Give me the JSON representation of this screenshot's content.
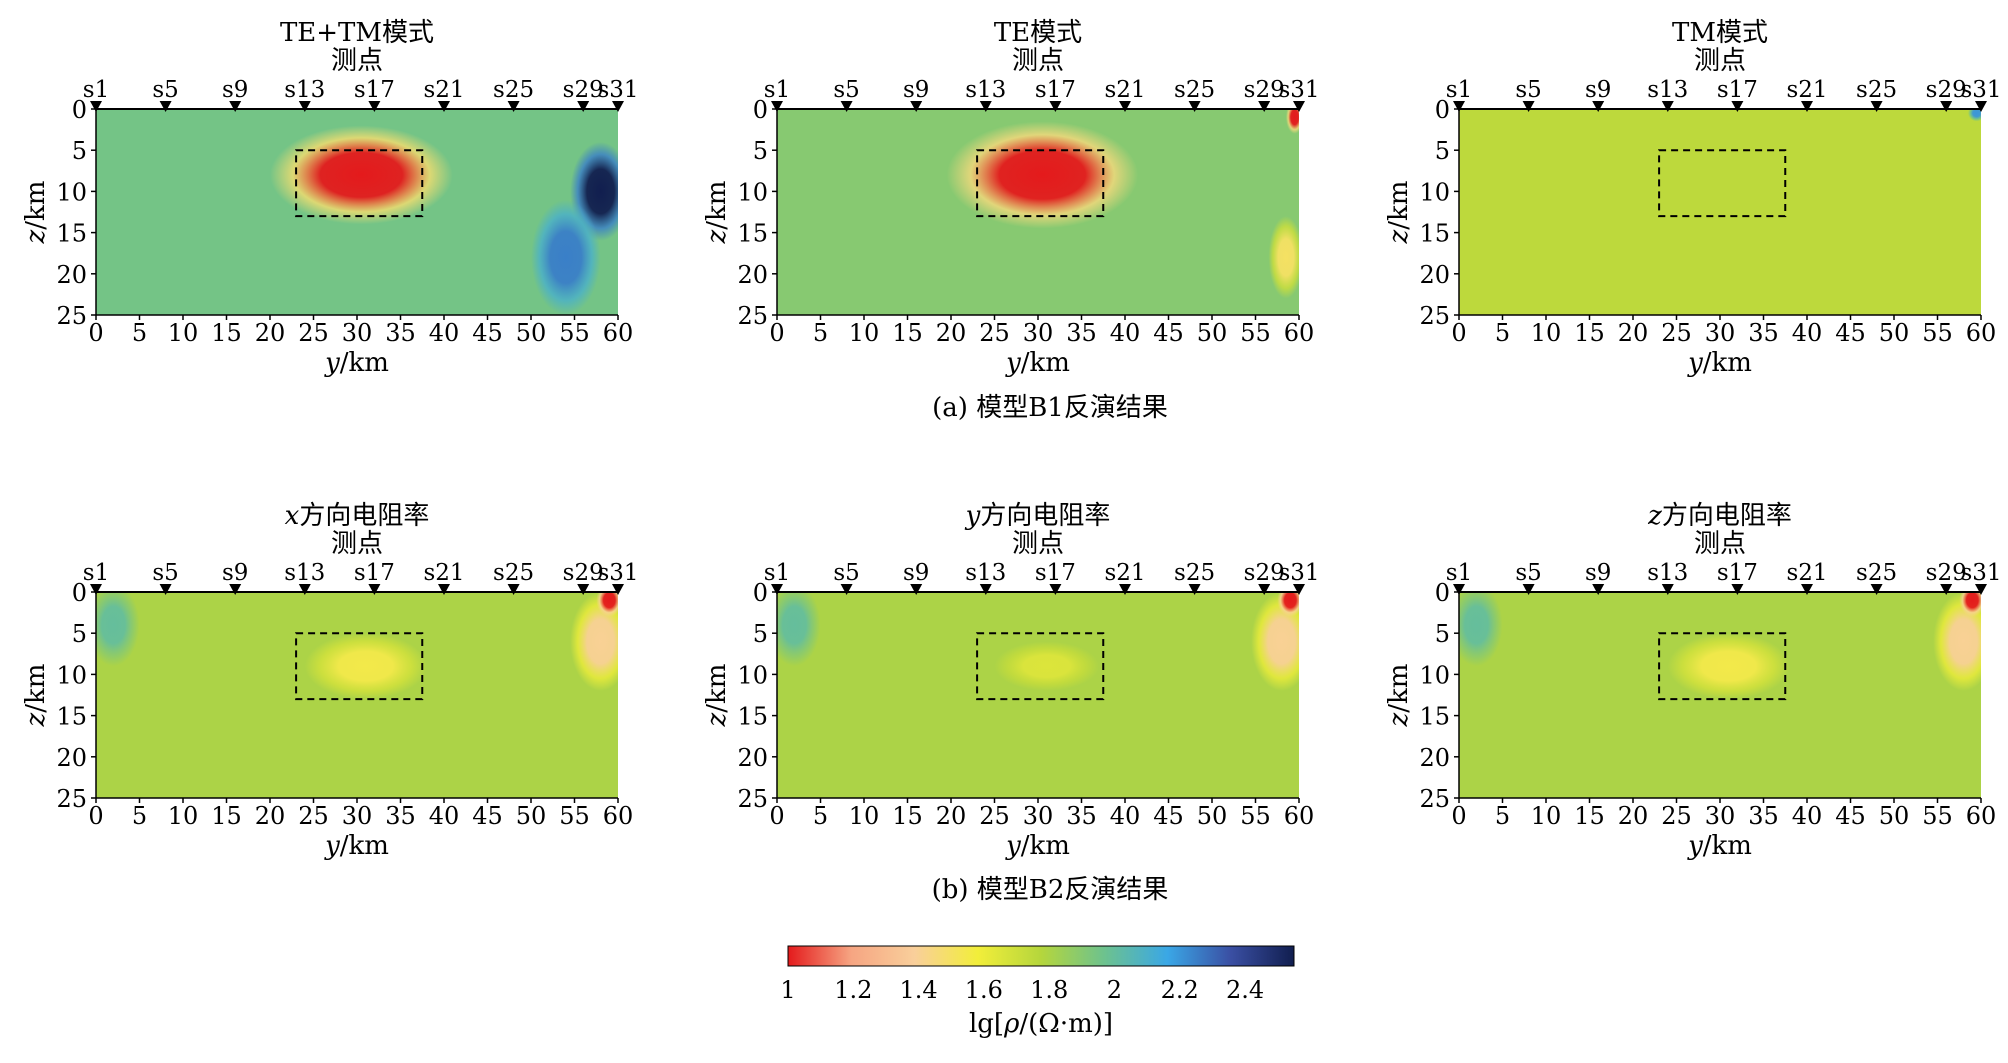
{
  "figure": {
    "caption_a": "(a) 模型B1反演结果",
    "caption_b": "(b) 模型B2反演结果"
  },
  "axis_text": {
    "station_axis_label": "测点",
    "x_axis_var": "y",
    "x_axis_unit": "/km",
    "y_axis_var": "z",
    "y_axis_unit": "/km"
  },
  "stations": [
    "s1",
    "s5",
    "s9",
    "s13",
    "s17",
    "s21",
    "s25",
    "s29",
    "s31"
  ],
  "station_positions_km": [
    0,
    8,
    16,
    24,
    32,
    40,
    48,
    56,
    60
  ],
  "x_ticks": [
    0,
    5,
    10,
    15,
    20,
    25,
    30,
    35,
    40,
    45,
    50,
    55,
    60
  ],
  "y_ticks": [
    0,
    5,
    10,
    15,
    20,
    25
  ],
  "colorbar": {
    "label_prefix": "lg[",
    "label_var": "ρ",
    "label_suffix": "/(Ω·m)]",
    "ticks": [
      "1",
      "1.2",
      "1.4",
      "1.6",
      "1.8",
      "2",
      "2.2",
      "2.4"
    ],
    "range": [
      1,
      2.55
    ],
    "colors": [
      "#e41a1c",
      "#f6a582",
      "#f9cf9b",
      "#f2ee3a",
      "#b5d63c",
      "#6dc28e",
      "#3aa7e6",
      "#3a4fa3",
      "#111e4f"
    ]
  },
  "chart_data": [
    {
      "type": "heatmap",
      "panel": "a",
      "title": "TE+TM模式",
      "xlabel": "y/km",
      "ylabel": "z/km",
      "x_range_km": [
        0,
        60
      ],
      "y_range_km": [
        0,
        25
      ],
      "y_inverted": true,
      "background_value": 1.95,
      "anomalies": [
        {
          "center_km": [
            30.5,
            8
          ],
          "radius_km": [
            10.5,
            6
          ],
          "value": 1.0
        },
        {
          "center_km": [
            58,
            10
          ],
          "radius_km": [
            3.5,
            6
          ],
          "value": 2.55
        },
        {
          "center_km": [
            54,
            18
          ],
          "radius_km": [
            4,
            7
          ],
          "value": 2.25
        }
      ],
      "target_box_km": {
        "y": [
          23,
          37.5
        ],
        "z": [
          5,
          13
        ]
      }
    },
    {
      "type": "heatmap",
      "panel": "a",
      "title": "TE模式",
      "xlabel": "y/km",
      "ylabel": "z/km",
      "x_range_km": [
        0,
        60
      ],
      "y_range_km": [
        0,
        25
      ],
      "y_inverted": true,
      "background_value": 1.9,
      "anomalies": [
        {
          "center_km": [
            30.5,
            8
          ],
          "radius_km": [
            11,
            6.5
          ],
          "value": 1.0
        },
        {
          "center_km": [
            59.5,
            1
          ],
          "radius_km": [
            1,
            2
          ],
          "value": 1.0
        },
        {
          "center_km": [
            58.5,
            18
          ],
          "radius_km": [
            2,
            5
          ],
          "value": 1.5
        }
      ],
      "target_box_km": {
        "y": [
          23,
          37.5
        ],
        "z": [
          5,
          13
        ]
      }
    },
    {
      "type": "heatmap",
      "panel": "a",
      "title": "TM模式",
      "xlabel": "y/km",
      "ylabel": "z/km",
      "x_range_km": [
        0,
        60
      ],
      "y_range_km": [
        0,
        25
      ],
      "y_inverted": true,
      "background_value": 1.75,
      "anomalies": [
        {
          "center_km": [
            59.5,
            0.5
          ],
          "radius_km": [
            1,
            1
          ],
          "value": 2.2
        }
      ],
      "target_box_km": {
        "y": [
          23,
          37.5
        ],
        "z": [
          5,
          13
        ]
      }
    },
    {
      "type": "heatmap",
      "panel": "b",
      "title_var": "x",
      "title": "方向电阻率",
      "xlabel": "y/km",
      "ylabel": "z/km",
      "x_range_km": [
        0,
        60
      ],
      "y_range_km": [
        0,
        25
      ],
      "y_inverted": true,
      "background_value": 1.8,
      "anomalies": [
        {
          "center_km": [
            31,
            9
          ],
          "radius_km": [
            7,
            4
          ],
          "value": 1.55
        },
        {
          "center_km": [
            58,
            6
          ],
          "radius_km": [
            3.5,
            6
          ],
          "value": 1.4
        },
        {
          "center_km": [
            59,
            1
          ],
          "radius_km": [
            1.5,
            2
          ],
          "value": 1.0
        },
        {
          "center_km": [
            2,
            4
          ],
          "radius_km": [
            3,
            5
          ],
          "value": 2.0
        }
      ],
      "target_box_km": {
        "y": [
          23,
          37.5
        ],
        "z": [
          5,
          13
        ]
      }
    },
    {
      "type": "heatmap",
      "panel": "b",
      "title_var": "y",
      "title": "方向电阻率",
      "xlabel": "y/km",
      "ylabel": "z/km",
      "x_range_km": [
        0,
        60
      ],
      "y_range_km": [
        0,
        25
      ],
      "y_inverted": true,
      "background_value": 1.8,
      "anomalies": [
        {
          "center_km": [
            31,
            9
          ],
          "radius_km": [
            6,
            3
          ],
          "value": 1.65
        },
        {
          "center_km": [
            58,
            6
          ],
          "radius_km": [
            3.5,
            6
          ],
          "value": 1.4
        },
        {
          "center_km": [
            59,
            1
          ],
          "radius_km": [
            1.5,
            2
          ],
          "value": 1.0
        },
        {
          "center_km": [
            2,
            4
          ],
          "radius_km": [
            3,
            5
          ],
          "value": 2.0
        }
      ],
      "target_box_km": {
        "y": [
          23,
          37.5
        ],
        "z": [
          5,
          13
        ]
      }
    },
    {
      "type": "heatmap",
      "panel": "b",
      "title_var": "z",
      "title": "方向电阻率",
      "xlabel": "y/km",
      "ylabel": "z/km",
      "x_range_km": [
        0,
        60
      ],
      "y_range_km": [
        0,
        25
      ],
      "y_inverted": true,
      "background_value": 1.8,
      "anomalies": [
        {
          "center_km": [
            31,
            9
          ],
          "radius_km": [
            7,
            4
          ],
          "value": 1.55
        },
        {
          "center_km": [
            58,
            6
          ],
          "radius_km": [
            3.5,
            6
          ],
          "value": 1.4
        },
        {
          "center_km": [
            59,
            1
          ],
          "radius_km": [
            1.5,
            2
          ],
          "value": 1.0
        },
        {
          "center_km": [
            2,
            4
          ],
          "radius_km": [
            3,
            5
          ],
          "value": 2.0
        }
      ],
      "target_box_km": {
        "y": [
          23,
          37.5
        ],
        "z": [
          5,
          13
        ]
      }
    }
  ]
}
